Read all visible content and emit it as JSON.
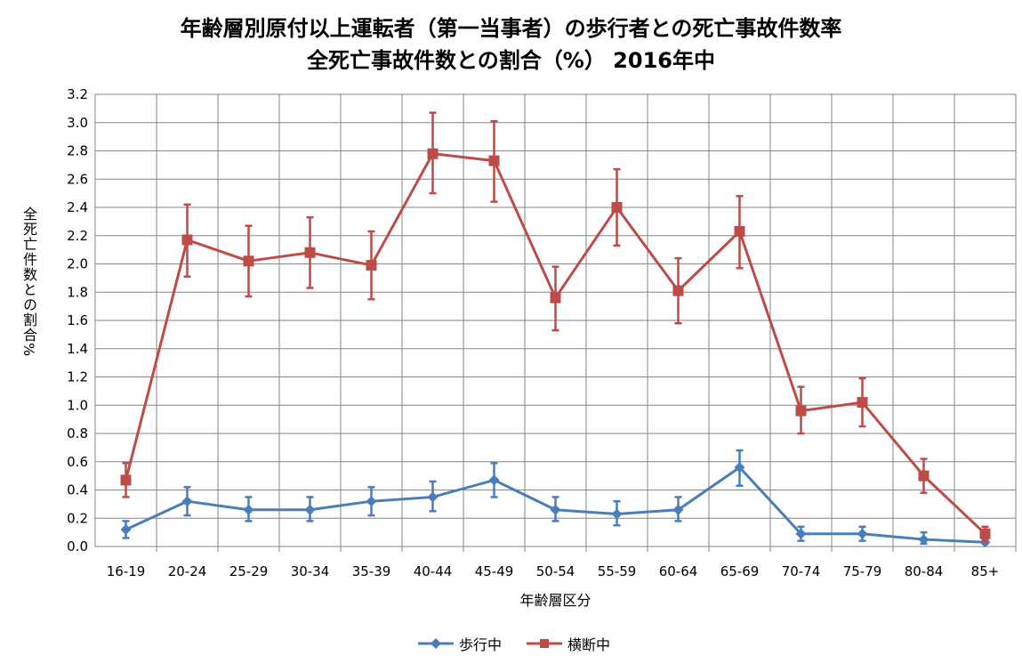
{
  "chart_data": {
    "type": "line",
    "title": [
      "年齢層別原付以上運転者（第一当事者）の歩行者との死亡事故件数率",
      "全死亡事故件数との割合（%） 2016年中"
    ],
    "xlabel": "年齢層区分",
    "ylabel": "全死亡件数との割合%",
    "ylim": [
      0,
      3.2
    ],
    "yticks": [
      "0.0",
      "0.2",
      "0.4",
      "0.6",
      "0.8",
      "1.0",
      "1.2",
      "1.4",
      "1.6",
      "1.8",
      "2.0",
      "2.2",
      "2.4",
      "2.6",
      "2.8",
      "3.0",
      "3.2"
    ],
    "grid": true,
    "legend_position": "bottom",
    "categories": [
      "16-19",
      "20-24",
      "25-29",
      "30-34",
      "35-39",
      "40-44",
      "45-49",
      "50-54",
      "55-59",
      "60-64",
      "65-69",
      "70-74",
      "75-79",
      "80-84",
      "85+"
    ],
    "series": [
      {
        "name": "歩行中",
        "color": "#4a7ebb",
        "marker": "diamond",
        "values": [
          0.12,
          0.32,
          0.26,
          0.26,
          0.32,
          0.35,
          0.47,
          0.26,
          0.23,
          0.26,
          0.56,
          0.09,
          0.09,
          0.05,
          0.03
        ],
        "error_low": [
          0.06,
          0.22,
          0.18,
          0.18,
          0.22,
          0.25,
          0.35,
          0.18,
          0.15,
          0.18,
          0.43,
          0.04,
          0.04,
          0.02,
          0.02
        ],
        "error_high": [
          0.18,
          0.42,
          0.35,
          0.35,
          0.42,
          0.46,
          0.59,
          0.35,
          0.32,
          0.35,
          0.68,
          0.14,
          0.14,
          0.1,
          0.05
        ]
      },
      {
        "name": "横断中",
        "color": "#be4b48",
        "marker": "square",
        "values": [
          0.47,
          2.17,
          2.02,
          2.08,
          1.99,
          2.78,
          2.73,
          1.76,
          2.4,
          1.81,
          2.23,
          0.96,
          1.02,
          0.5,
          0.09
        ],
        "error_low": [
          0.35,
          1.91,
          1.77,
          1.83,
          1.75,
          2.5,
          2.44,
          1.53,
          2.13,
          1.58,
          1.97,
          0.8,
          0.85,
          0.38,
          0.04
        ],
        "error_high": [
          0.59,
          2.42,
          2.27,
          2.33,
          2.23,
          3.07,
          3.01,
          1.98,
          2.67,
          2.04,
          2.48,
          1.13,
          1.19,
          0.62,
          0.14
        ]
      }
    ]
  }
}
